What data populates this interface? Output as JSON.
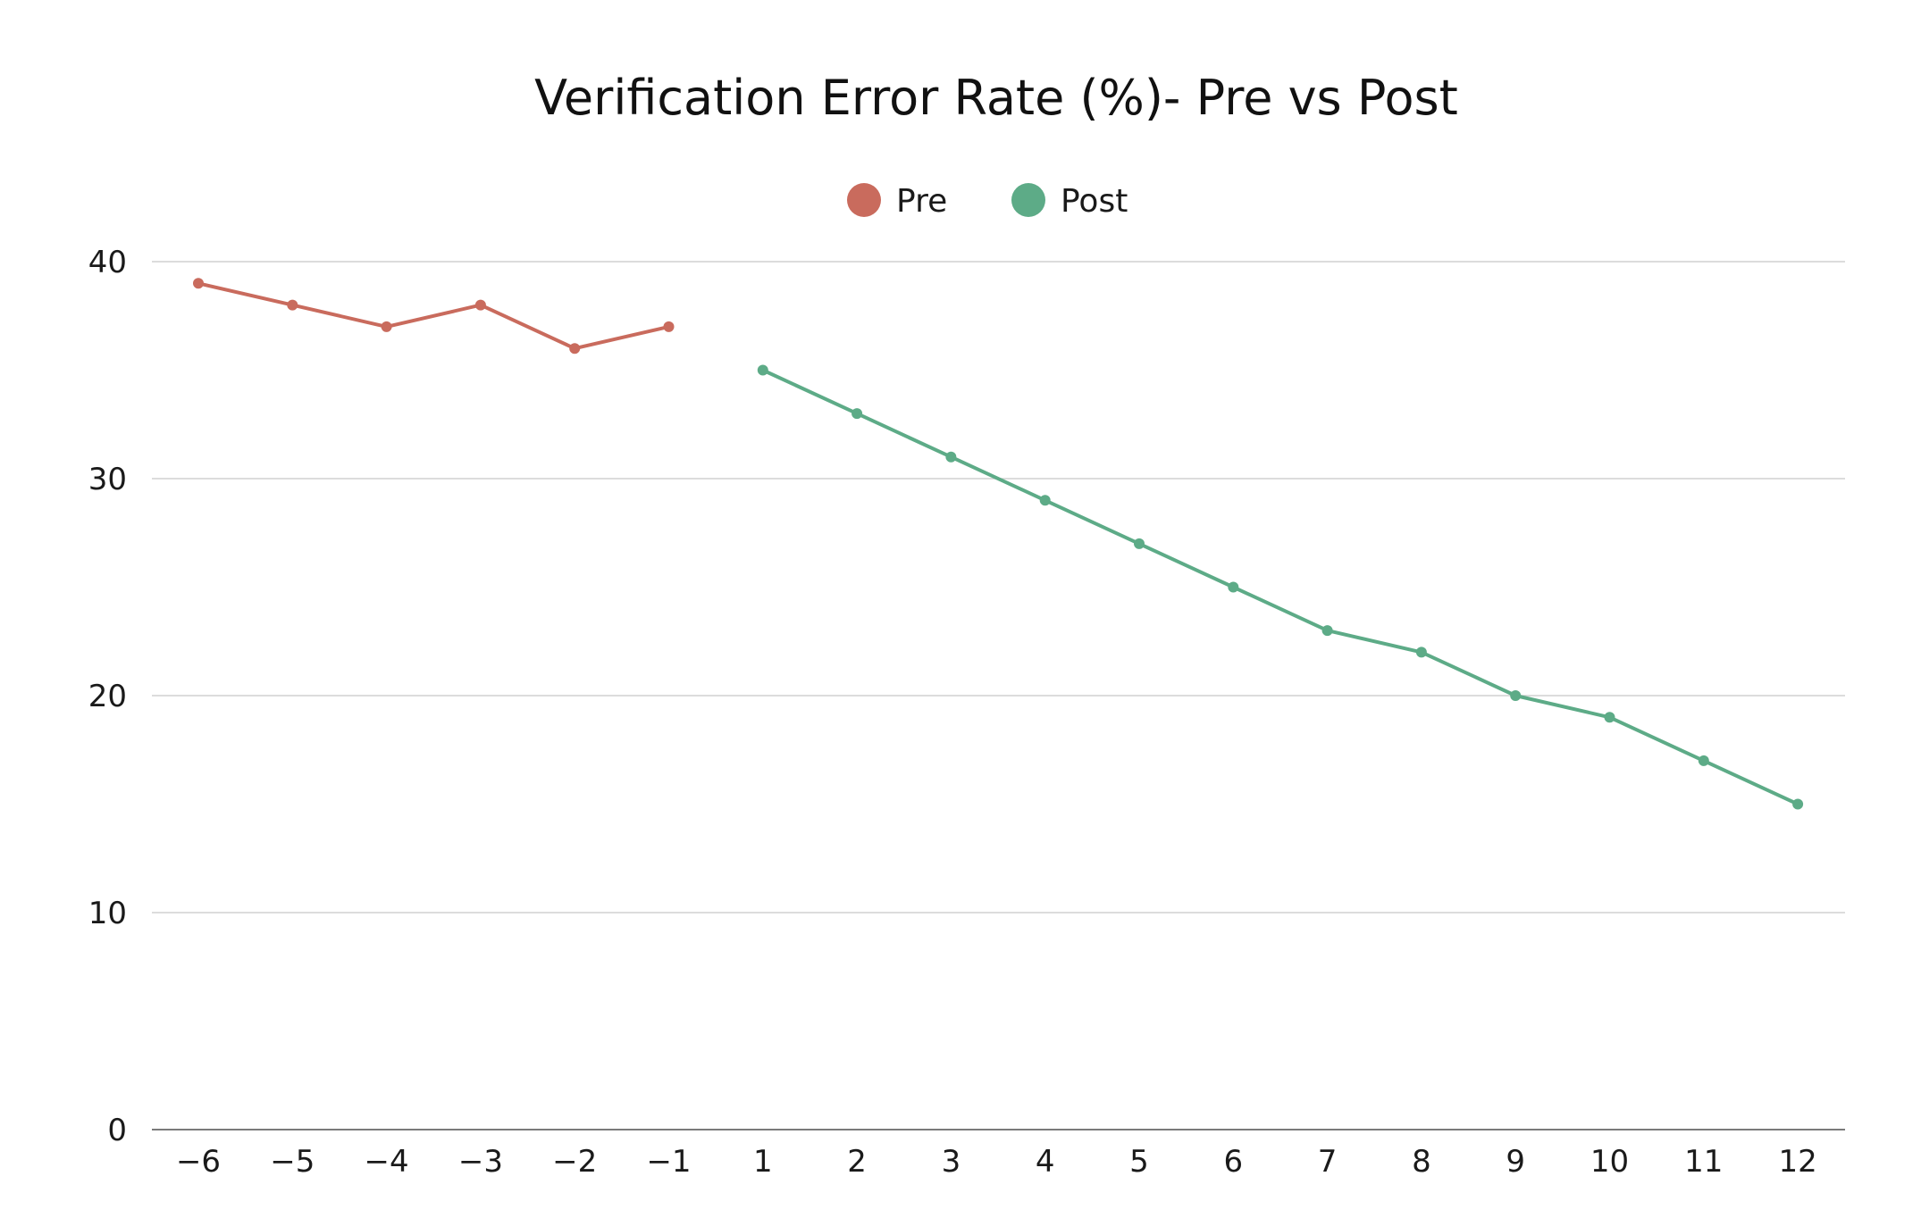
{
  "chart_data": {
    "type": "line",
    "title": "Verification Error Rate (%)- Pre vs Post",
    "xlabel": "",
    "ylabel": "",
    "categories": [
      "−6",
      "−5",
      "−4",
      "−3",
      "−2",
      "−1",
      "1",
      "2",
      "3",
      "4",
      "5",
      "6",
      "7",
      "8",
      "9",
      "10",
      "11",
      "12"
    ],
    "ylim": [
      0,
      40
    ],
    "yticks": [
      0,
      10,
      20,
      30,
      40
    ],
    "grid": true,
    "legend_position": "top-center",
    "series": [
      {
        "name": "Pre",
        "color": "#c96b5d",
        "values": [
          39,
          38,
          37,
          38,
          36,
          37,
          null,
          null,
          null,
          null,
          null,
          null,
          null,
          null,
          null,
          null,
          null,
          null
        ]
      },
      {
        "name": "Post",
        "color": "#5dab87",
        "values": [
          null,
          null,
          null,
          null,
          null,
          null,
          35,
          33,
          31,
          29,
          27,
          25,
          23,
          22,
          20,
          19,
          17,
          15
        ]
      }
    ]
  }
}
